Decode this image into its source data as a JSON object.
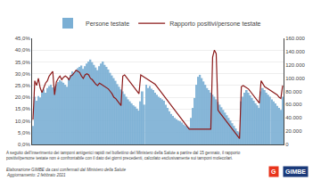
{
  "chart_data": {
    "type": "bar",
    "categories": [
      null,
      null,
      null,
      null,
      null,
      null,
      null,
      null,
      null,
      null,
      null,
      null,
      null,
      null,
      null,
      null,
      null,
      null,
      null,
      null,
      null,
      null,
      null,
      null,
      null,
      null,
      null,
      null,
      null,
      null,
      null,
      null,
      null,
      null,
      null,
      null,
      null,
      null,
      null,
      null,
      null,
      null,
      null,
      null,
      null,
      null,
      null,
      null,
      null,
      null,
      null,
      null,
      null,
      null,
      null,
      null,
      null,
      null,
      null,
      null,
      null,
      null,
      null,
      null,
      null,
      null,
      null,
      null,
      null,
      null,
      null,
      null,
      null,
      null,
      null,
      null,
      null,
      null,
      null,
      null,
      null,
      null,
      null,
      null,
      null,
      null,
      null,
      null,
      null,
      null,
      null,
      null,
      null,
      null,
      null,
      null,
      null,
      null,
      null,
      null,
      null,
      null,
      null,
      null,
      null,
      null,
      null,
      null,
      null,
      null,
      null,
      null,
      null,
      null,
      null,
      null,
      null,
      null,
      null,
      null,
      null,
      null,
      null,
      null,
      null,
      null,
      null,
      null,
      null,
      null,
      null,
      null,
      null,
      null,
      null,
      null,
      null,
      null,
      null,
      null
    ],
    "series": [
      {
        "name": "Persone testate",
        "type": "bar",
        "color": "#7bafd4",
        "axis": "y2",
        "values": [
          28000,
          72000,
          66000,
          73000,
          71000,
          79000,
          83000,
          78000,
          85000,
          88000,
          90000,
          86000,
          88000,
          91000,
          94000,
          97000,
          95000,
          93000,
          90000,
          87000,
          100000,
          105000,
          110000,
          108000,
          112000,
          115000,
          117000,
          119000,
          114000,
          118000,
          122000,
          125000,
          128000,
          124000,
          120000,
          116000,
          112000,
          118000,
          122000,
          125000,
          120000,
          117000,
          113000,
          108000,
          104000,
          100000,
          96000,
          91000,
          87000,
          83000,
          80000,
          76000,
          72000,
          68000,
          65000,
          62000,
          59000,
          57000,
          54000,
          51000,
          65000,
          80000,
          60000,
          90000,
          85000,
          88000,
          84000,
          82000,
          78000,
          75000,
          72000,
          70000,
          68000,
          66000,
          60000,
          55000,
          50000,
          46000,
          43000,
          40000,
          38000,
          36000,
          35000,
          33000,
          30000,
          28000,
          27000,
          26000,
          40000,
          55000,
          70000,
          90000,
          102000,
          105000,
          100000,
          95000,
          90000,
          85000,
          82000,
          78000,
          75000,
          72000,
          68000,
          64000,
          60000,
          56000,
          52000,
          48000,
          44000,
          40000,
          36000,
          32000,
          28000,
          24000,
          20000,
          18000,
          65000,
          72000,
          78000,
          82000,
          78000,
          74000,
          70000,
          66000,
          62000,
          59000,
          55000,
          80000,
          85000,
          82000,
          78000,
          75000,
          72000,
          68000,
          65000,
          62000,
          58000,
          55000,
          52000,
          72000
        ]
      },
      {
        "name": "Rapporto positivi/persone testate",
        "type": "line",
        "color": "#8b1a1a",
        "values": [
          0.105,
          0.27,
          0.25,
          0.28,
          0.24,
          0.22,
          0.24,
          0.26,
          0.27,
          0.29,
          0.3,
          0.31,
          0.21,
          0.265,
          0.28,
          0.29,
          0.275,
          0.285,
          0.29,
          0.285,
          0.275,
          0.29,
          0.295,
          0.305,
          0.315,
          0.31,
          0.305,
          0.29,
          0.28,
          0.295,
          0.3,
          0.295,
          0.28,
          0.275,
          0.265,
          0.255,
          0.25,
          0.26,
          0.255,
          0.25,
          0.245,
          0.24,
          0.235,
          0.225,
          0.215,
          0.2,
          0.195,
          0.185,
          0.175,
          0.165,
          0.29,
          0.295,
          0.285,
          0.275,
          0.265,
          0.255,
          0.245,
          0.235,
          0.225,
          0.215,
          0.295,
          0.29,
          0.285,
          0.28,
          0.275,
          0.27,
          0.265,
          0.26,
          0.255,
          0.245,
          0.235,
          0.225,
          0.215,
          0.205,
          0.195,
          0.185,
          0.175,
          0.165,
          0.155,
          0.145,
          0.135,
          0.125,
          0.115,
          0.105,
          0.095,
          0.085,
          0.075,
          0.065,
          0.065,
          0.065,
          0.065,
          0.065,
          0.065,
          0.065,
          0.065,
          0.065,
          0.065,
          0.065,
          0.065,
          0.065,
          0.37,
          0.4,
          0.385,
          0.145,
          0.135,
          0.125,
          0.115,
          0.105,
          0.095,
          0.085,
          0.075,
          0.065,
          0.055,
          0.045,
          0.035,
          0.025,
          0.245,
          0.25,
          0.245,
          0.24,
          0.235,
          0.225,
          0.215,
          0.205,
          0.195,
          0.185,
          0.175,
          0.27,
          0.255,
          0.245,
          0.24,
          0.235,
          0.23,
          0.225,
          0.22,
          0.215,
          0.21,
          0.2,
          0.195,
          0.25
        ]
      }
    ],
    "ylim": [
      0.0,
      0.45
    ],
    "yticks": [
      {
        "value": 0.0,
        "label": "0,0%"
      },
      {
        "value": 0.05,
        "label": "5,0%"
      },
      {
        "value": 0.1,
        "label": "10,0%"
      },
      {
        "value": 0.15,
        "label": "15,0%"
      },
      {
        "value": 0.2,
        "label": "20,0%"
      },
      {
        "value": 0.25,
        "label": "25,0%"
      },
      {
        "value": 0.3,
        "label": "30,0%"
      },
      {
        "value": 0.35,
        "label": "35,0%"
      },
      {
        "value": 0.4,
        "label": "40,0%"
      },
      {
        "value": 0.45,
        "label": "45,0%"
      }
    ],
    "y2lim": [
      0,
      160000
    ],
    "y2ticks": [
      0,
      {
        "value": 20000,
        "label": "20.000"
      },
      {
        "value": 40000,
        "label": "40.000"
      },
      {
        "value": 60000,
        "label": "60.000"
      },
      {
        "value": 80000,
        "label": "80.000"
      },
      {
        "value": 100000,
        "label": "100.000"
      },
      {
        "value": 120000,
        "label": "120.000"
      },
      {
        "value": 140000,
        "label": "140.000"
      },
      {
        "value": 160000,
        "label": "160.000"
      }
    ],
    "grid": true,
    "legend": "top",
    "tick_labels": "y",
    "annotations": [
      "A seguito dell'inserimento dei tamponi antigenici rapidi nel bollettino del Ministero della Salute a partire dal 15 gennaio, il rapporto",
      "positivi/persone testate non è confrontabile con il dato dei giorni precedenti, calcolato esclusivamente sui tamponi molecolari.",
      "Elaborazione GIMBE da casi confermati dal Ministero della Salute",
      "Aggiornamento: 2 febbraio 2021",
      "G",
      "GIMBE"
    ]
  }
}
